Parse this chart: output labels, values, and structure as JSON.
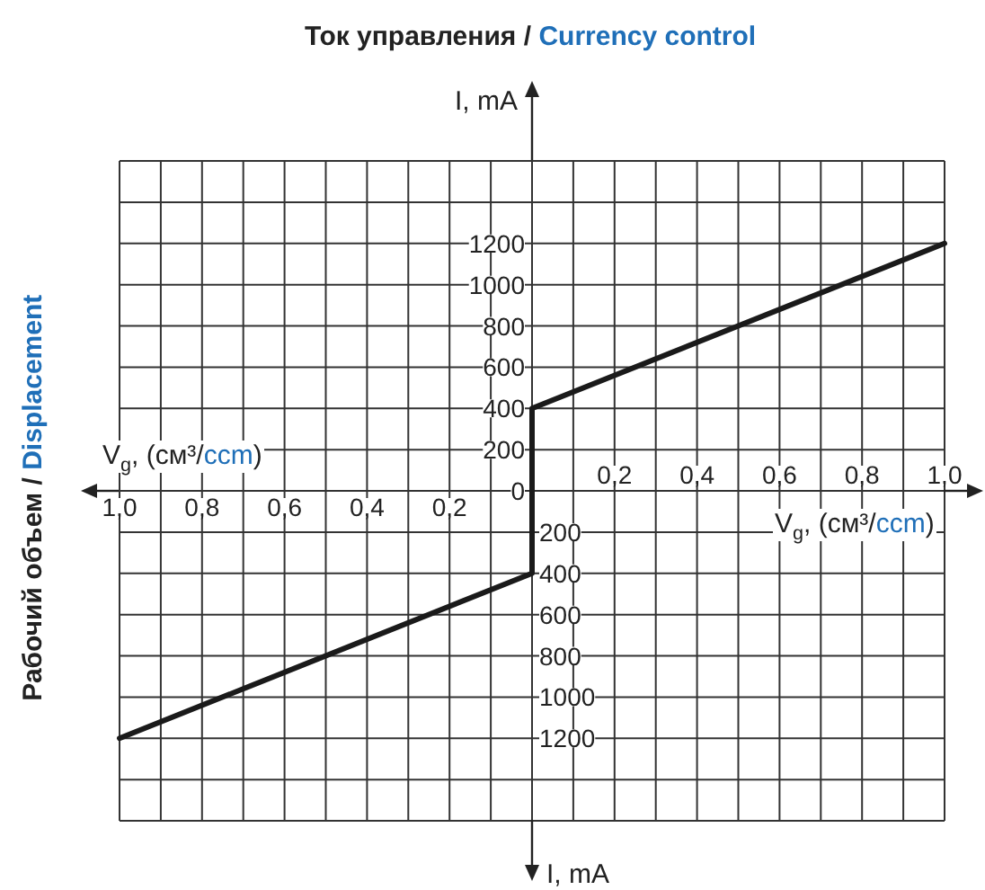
{
  "chart_data": {
    "type": "line",
    "title": "Ток управления / Currency control",
    "xlabel": "V$_{g}$, (см³/ccm)",
    "x2label": "V$_{g}$, (см³/ccm)",
    "ylabel": "I, mA",
    "annotations": [
      "Рабочий объем / Displacement",
      "I, mA"
    ],
    "x": [
      -1.0,
      0,
      0,
      1.0
    ],
    "series": [
      {
        "color": "#1a1a1a",
        "values": [
          -1200,
          -400,
          400,
          1200
        ]
      }
    ],
    "xlim": [
      -1.0,
      1.0
    ],
    "x2lim": [
      -1.0,
      1.0
    ],
    "ylim": [
      -1600,
      1600
    ],
    "y2lim": [
      -1600,
      1600
    ],
    "xticks": [
      {
        "value": -1.0,
        "label": "1,0"
      },
      {
        "value": -0.9,
        "label": null
      },
      {
        "value": -0.8,
        "label": "0,8"
      },
      {
        "value": -0.7,
        "label": null
      },
      {
        "value": -0.6,
        "label": "0,6"
      },
      {
        "value": -0.5,
        "label": null
      },
      {
        "value": -0.4,
        "label": "0,4"
      },
      {
        "value": -0.3,
        "label": null
      },
      {
        "value": -0.2,
        "label": "0,2"
      },
      {
        "value": -0.1,
        "label": null
      },
      {
        "value": 0,
        "label": null
      }
    ],
    "x2ticks": [
      {
        "value": 0.1,
        "label": null
      },
      {
        "value": 0.2,
        "label": "0,2"
      },
      {
        "value": 0.3,
        "label": null
      },
      {
        "value": 0.4,
        "label": "0,4"
      },
      {
        "value": 0.5,
        "label": null
      },
      {
        "value": 0.6,
        "label": "0,6"
      },
      {
        "value": 0.7,
        "label": null
      },
      {
        "value": 0.8,
        "label": "0,8"
      },
      {
        "value": 0.9,
        "label": null
      },
      {
        "value": 1.0,
        "label": "1,0"
      }
    ],
    "yticks": [
      0,
      200,
      400,
      600,
      800,
      1000,
      1200,
      {
        "value": 1400,
        "label": null
      },
      {
        "value": 1600,
        "label": null
      }
    ],
    "y2ticks": [
      {
        "value": -1600,
        "label": null
      },
      {
        "value": -1400,
        "label": null
      },
      {
        "value": -1200,
        "label": "1200"
      },
      {
        "value": -1000,
        "label": "1000"
      },
      {
        "value": -800,
        "label": "800"
      },
      {
        "value": -600,
        "label": "600"
      },
      {
        "value": -400,
        "label": "400"
      },
      {
        "value": -200,
        "label": "200"
      }
    ],
    "grid": true,
    "line_style": "solid"
  }
}
